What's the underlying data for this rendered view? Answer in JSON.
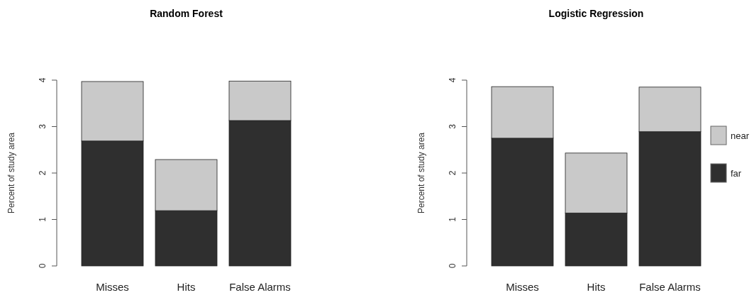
{
  "chart_data": [
    {
      "type": "bar",
      "title": "Random Forest",
      "ylabel": "Percent of study area",
      "categories": [
        "Misses",
        "Hits",
        "False Alarms"
      ],
      "stacked": true,
      "ylim": [
        0,
        4
      ],
      "yticks": [
        0,
        1,
        2,
        3,
        4
      ],
      "grid": false,
      "legend": false,
      "series": [
        {
          "color": "#2f2f2f",
          "values": [
            2.69,
            1.19,
            3.13
          ]
        },
        {
          "color": "#c9c9c9",
          "values": [
            1.28,
            1.1,
            0.85
          ]
        }
      ]
    },
    {
      "type": "bar",
      "title": "Logistic Regression",
      "ylabel": "Percent of study area",
      "categories": [
        "Misses",
        "Hits",
        "False Alarms"
      ],
      "stacked": true,
      "ylim": [
        0,
        4
      ],
      "yticks": [
        0,
        1,
        2,
        3,
        4
      ],
      "grid": false,
      "legend": "right",
      "series": [
        {
          "name": "far",
          "color": "#2f2f2f",
          "values": [
            2.75,
            1.14,
            2.89
          ]
        },
        {
          "name": "near",
          "color": "#c9c9c9",
          "values": [
            1.11,
            1.29,
            0.96
          ]
        }
      ]
    }
  ]
}
